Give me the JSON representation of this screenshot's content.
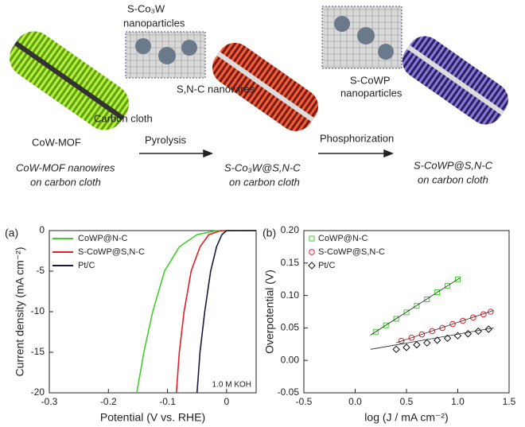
{
  "schematic": {
    "labels": [
      "S-Co₃W",
      "nanoparticles",
      "S,N-C nanowires",
      "Carbon cloth",
      "CoW-MOF",
      "Pyrolysis",
      "Phosphorization",
      "S-CoWP",
      "nanoparticles",
      "CoW-MOF nanowires",
      "on carbon cloth",
      "S-Co₃W@S,N-C",
      "on carbon cloth",
      "S-CoWP@S,N-C",
      "on carbon cloth"
    ]
  },
  "chart_data": [
    {
      "type": "line",
      "panel": "(a)",
      "x_label": "Potential (V vs. RHE)",
      "y_label": "Current density (mA cm⁻²)",
      "annotation": "1.0 M KOH",
      "xlim": [
        -0.3,
        0.05
      ],
      "xticks": [
        -0.3,
        -0.2,
        -0.1,
        0
      ],
      "ylim": [
        -20,
        0
      ],
      "yticks": [
        0,
        -5,
        -10,
        -15,
        -20
      ],
      "legend": "upper left",
      "series": [
        {
          "name": "CoWP@N-C",
          "color": "#3fcf2a",
          "x": [
            -0.152,
            -0.14,
            -0.125,
            -0.105,
            -0.08,
            -0.05,
            -0.02,
            0.05
          ],
          "values": [
            -20,
            -15,
            -10,
            -5,
            -2,
            -0.5,
            -0.05,
            0
          ]
        },
        {
          "name": "S-CoWP@S,N-C",
          "color": "#e0202a",
          "x": [
            -0.085,
            -0.08,
            -0.072,
            -0.06,
            -0.045,
            -0.03,
            -0.01,
            0.05
          ],
          "values": [
            -20,
            -15,
            -10,
            -5,
            -2,
            -0.5,
            0,
            0
          ]
        },
        {
          "name": "Pt/C",
          "color": "#1a1a40",
          "x": [
            -0.05,
            -0.045,
            -0.037,
            -0.027,
            -0.017,
            -0.008,
            0,
            0.05
          ],
          "values": [
            -20,
            -15,
            -10,
            -5,
            -2,
            -0.5,
            0,
            0
          ]
        }
      ]
    },
    {
      "type": "scatter",
      "panel": "(b)",
      "x_label": "log (J / mA cm⁻²)",
      "y_label": "Overpotential (V)",
      "xlim": [
        -0.5,
        1.5
      ],
      "xticks": [
        -0.5,
        {
          "value": 0,
          "label": "0.0"
        },
        0.5,
        {
          "value": 1,
          "label": "1.0"
        },
        1.5
      ],
      "ylim": [
        -0.05,
        0.2
      ],
      "yticks": [
        -0.05,
        {
          "value": 0,
          "label": "0.00"
        },
        0.05,
        {
          "value": 0.1,
          "label": "0.10"
        },
        0.15,
        {
          "value": 0.2,
          "label": "0.20"
        }
      ],
      "legend": "upper left",
      "series": [
        {
          "name": "CoWP@N-C",
          "color": "#3fcf2a",
          "marker": "square",
          "x": [
            0.2,
            0.3,
            0.4,
            0.5,
            0.6,
            0.7,
            0.8,
            0.9,
            1.0
          ],
          "values": [
            0.044,
            0.054,
            0.064,
            0.074,
            0.084,
            0.094,
            0.105,
            0.115,
            0.125
          ],
          "fit_x": [
            0.15,
            1.02
          ],
          "fit_y": [
            0.039,
            0.127
          ]
        },
        {
          "name": "S-CoWP@S,N-C",
          "color": "#e0202a",
          "marker": "circle",
          "x": [
            0.45,
            0.55,
            0.65,
            0.75,
            0.85,
            0.95,
            1.05,
            1.15,
            1.25,
            1.32
          ],
          "values": [
            0.03,
            0.035,
            0.04,
            0.045,
            0.05,
            0.056,
            0.061,
            0.066,
            0.071,
            0.075
          ],
          "fit_x": [
            0.4,
            1.35
          ],
          "fit_y": [
            0.027,
            0.077
          ]
        },
        {
          "name": "Pt/C",
          "color": "#111111",
          "marker": "diamond",
          "x": [
            0.4,
            0.5,
            0.6,
            0.7,
            0.8,
            0.9,
            1.0,
            1.1,
            1.2,
            1.3
          ],
          "values": [
            0.017,
            0.02,
            0.024,
            0.027,
            0.031,
            0.034,
            0.038,
            0.041,
            0.045,
            0.048
          ],
          "fit_x": [
            0.15,
            1.35
          ],
          "fit_y": [
            0.017,
            0.05
          ]
        }
      ]
    }
  ]
}
